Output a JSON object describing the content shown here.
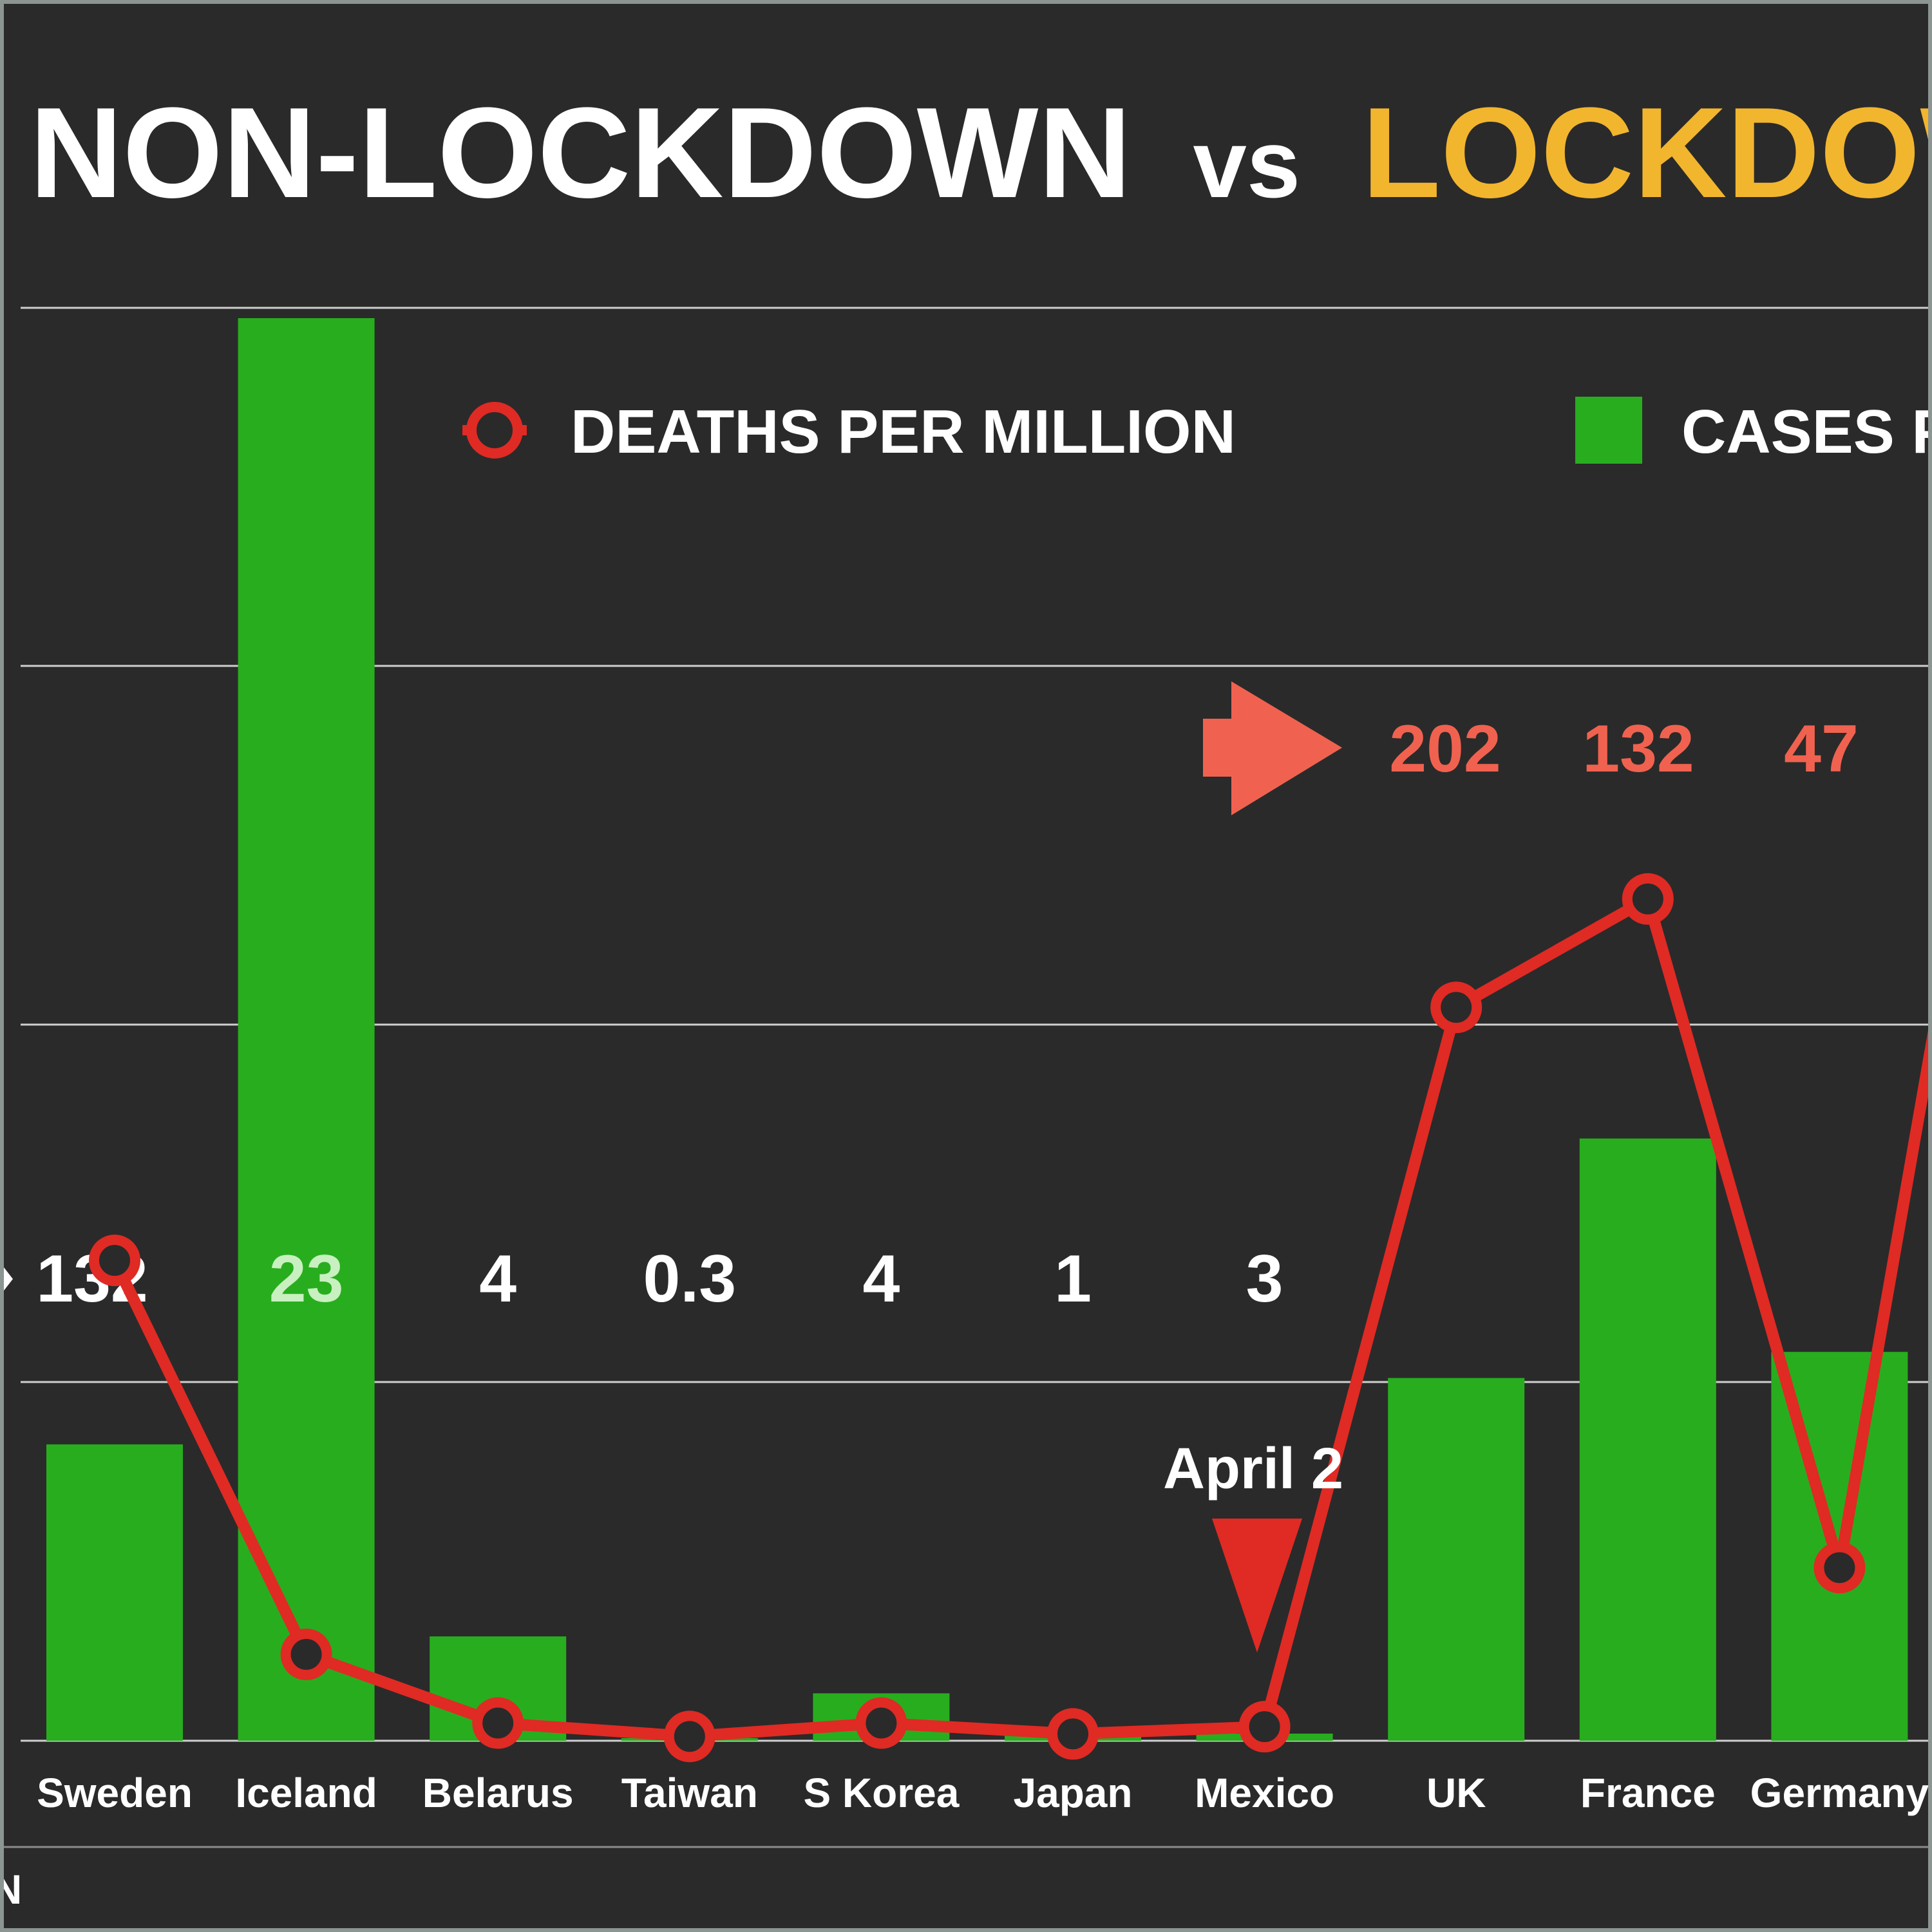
{
  "title": {
    "part1": "NON-LOCKDOWN",
    "part2": "vs",
    "part3": "LOCKDOWN",
    "highlight_color": "#f2b52e"
  },
  "legend": {
    "deaths_label": "DEATHS PER MILLION",
    "cases_label": "CASES PER MILLION",
    "deaths_color": "#e02a24",
    "cases_color": "#28ad1f"
  },
  "annotations": {
    "april": "April 2",
    "arrow_left_values": [
      "202",
      "132",
      "47"
    ],
    "arrow_color": "#f0624f"
  },
  "footer": {
    "text": "N"
  },
  "chart_data": {
    "type": "bar",
    "categories": [
      "Sweden",
      "Iceland",
      "Belarus",
      "Taiwan",
      "S Korea",
      "Japan",
      "Mexico",
      "UK",
      "France",
      "Germany"
    ],
    "series": [
      {
        "name": "CASES PER MILLION",
        "kind": "bar",
        "values": [
          1250,
          6000,
          440,
          2,
          200,
          50,
          30,
          1530,
          2540,
          1640
        ]
      },
      {
        "name": "DEATHS PER MILLION",
        "kind": "line",
        "values": [
          132,
          23,
          4,
          0.3,
          4,
          1,
          3,
          202,
          232,
          47
        ]
      }
    ],
    "top_value_labels": [
      "132",
      "23",
      "4",
      "0.3",
      "4",
      "1",
      "3"
    ],
    "grid": true,
    "legend_position": "top"
  }
}
